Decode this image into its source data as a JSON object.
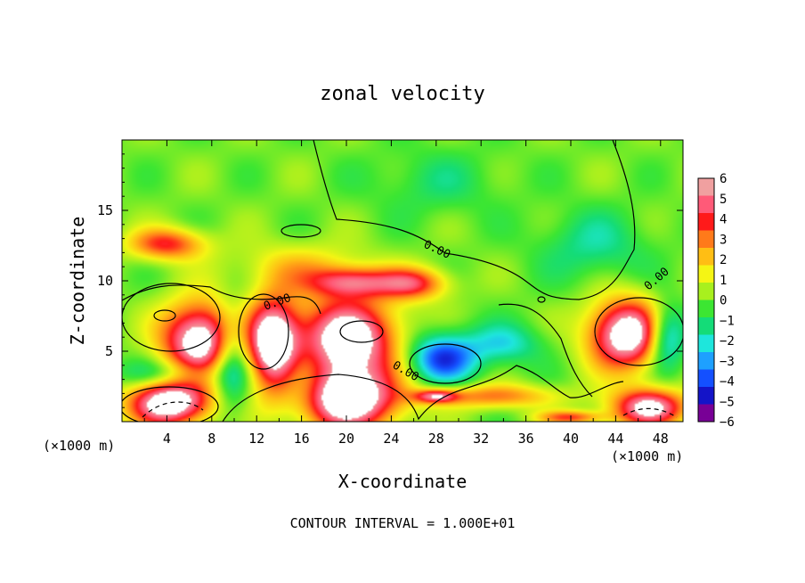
{
  "chart_data": {
    "type": "heatmap",
    "title": "zonal velocity",
    "xlabel": "X-coordinate",
    "ylabel": "Z-coordinate",
    "x_unit_note_left": "(×1000 m)",
    "x_unit_note_right": "(×1000 m)",
    "xlim": [
      0,
      50
    ],
    "ylim": [
      0,
      20
    ],
    "xticks": [
      4,
      8,
      12,
      16,
      20,
      24,
      28,
      32,
      36,
      40,
      44,
      48
    ],
    "xtick_labels": [
      "4",
      "8",
      "12",
      "16",
      "20",
      "24",
      "28",
      "32",
      "36",
      "40",
      "44",
      "48"
    ],
    "yticks": [
      5,
      10,
      15
    ],
    "ytick_labels": [
      "5",
      "10",
      "15"
    ],
    "colorbar_ticks": [
      6,
      5,
      4,
      3,
      2,
      1,
      0,
      -1,
      -2,
      -3,
      -4,
      -5,
      -6
    ],
    "colorbar_tick_labels": [
      "6",
      "5",
      "4",
      "3",
      "2",
      "1",
      "0",
      "−1",
      "−2",
      "−3",
      "−4",
      "−5",
      "−6"
    ],
    "colorbar_colors": [
      "#f0a0a0",
      "#ff5a78",
      "#ff1a1a",
      "#ff7a1a",
      "#ffbe14",
      "#f5f514",
      "#a8f01e",
      "#3ce632",
      "#14dc78",
      "#1ee6dc",
      "#1ea0ff",
      "#1450ff",
      "#1414c8",
      "#780096"
    ],
    "background_value": 0.5,
    "features": [
      {
        "x": 7.0,
        "z": 5.8,
        "rx": 3.6,
        "rz": 2.8,
        "value": 8
      },
      {
        "x": 13.5,
        "z": 5.5,
        "rx": 2.4,
        "rz": 3.4,
        "value": 8
      },
      {
        "x": 20.0,
        "z": 5.8,
        "rx": 4.8,
        "rz": 3.1,
        "value": 8
      },
      {
        "x": 4.2,
        "z": 1.3,
        "rx": 3.8,
        "rz": 1.7,
        "value": 8
      },
      {
        "x": 20.0,
        "z": 1.5,
        "rx": 4.8,
        "rz": 2.3,
        "value": 8
      },
      {
        "x": 45.0,
        "z": 6.2,
        "rx": 3.6,
        "rz": 2.6,
        "value": 8
      },
      {
        "x": 47.0,
        "z": 1.0,
        "rx": 3.5,
        "rz": 1.4,
        "value": 7
      },
      {
        "x": 4.0,
        "z": 12.6,
        "rx": 3.6,
        "rz": 1.2,
        "value": 4.5
      },
      {
        "x": 20.5,
        "z": 9.9,
        "rx": 4.0,
        "rz": 1.1,
        "value": 4.5
      },
      {
        "x": 26.0,
        "z": 9.8,
        "rx": 3.2,
        "rz": 1.2,
        "value": 4.5
      },
      {
        "x": 16.0,
        "z": 11.0,
        "rx": 6.0,
        "rz": 1.8,
        "value": 2.0
      },
      {
        "x": 9.8,
        "z": 4.5,
        "rx": 1.8,
        "rz": 3.6,
        "value": -3.5
      },
      {
        "x": 28.5,
        "z": 4.5,
        "rx": 3.2,
        "rz": 1.8,
        "value": -5.0
      },
      {
        "x": 34.0,
        "z": 5.5,
        "rx": 3.5,
        "rz": 1.5,
        "value": -2.5
      },
      {
        "x": 48.5,
        "z": 6.0,
        "rx": 1.8,
        "rz": 2.4,
        "value": -4.5
      },
      {
        "x": 16.0,
        "z": 3.0,
        "rx": 2.5,
        "rz": 2.6,
        "value": -2.5
      },
      {
        "x": 4.0,
        "z": 3.4,
        "rx": 5.0,
        "rz": 1.1,
        "value": -2.0
      },
      {
        "x": 28.0,
        "z": 17.0,
        "rx": 6.0,
        "rz": 2.4,
        "value": -1.2
      },
      {
        "x": 42.0,
        "z": 12.5,
        "rx": 5.0,
        "rz": 2.6,
        "value": -1.8
      },
      {
        "x": 33.0,
        "z": 1.8,
        "rx": 6.0,
        "rz": 0.9,
        "value": 3.5
      },
      {
        "x": 28.0,
        "z": 1.8,
        "rx": 2.0,
        "rz": 0.5,
        "value": 5.0
      },
      {
        "x": 40.0,
        "z": 0.3,
        "rx": 3.0,
        "rz": 0.5,
        "value": 4.0
      }
    ],
    "contour_labels": [
      "0.00",
      "0.00",
      "0.00",
      "0.00"
    ],
    "contour_interval_text": "CONTOUR INTERVAL = 1.000E+01"
  }
}
